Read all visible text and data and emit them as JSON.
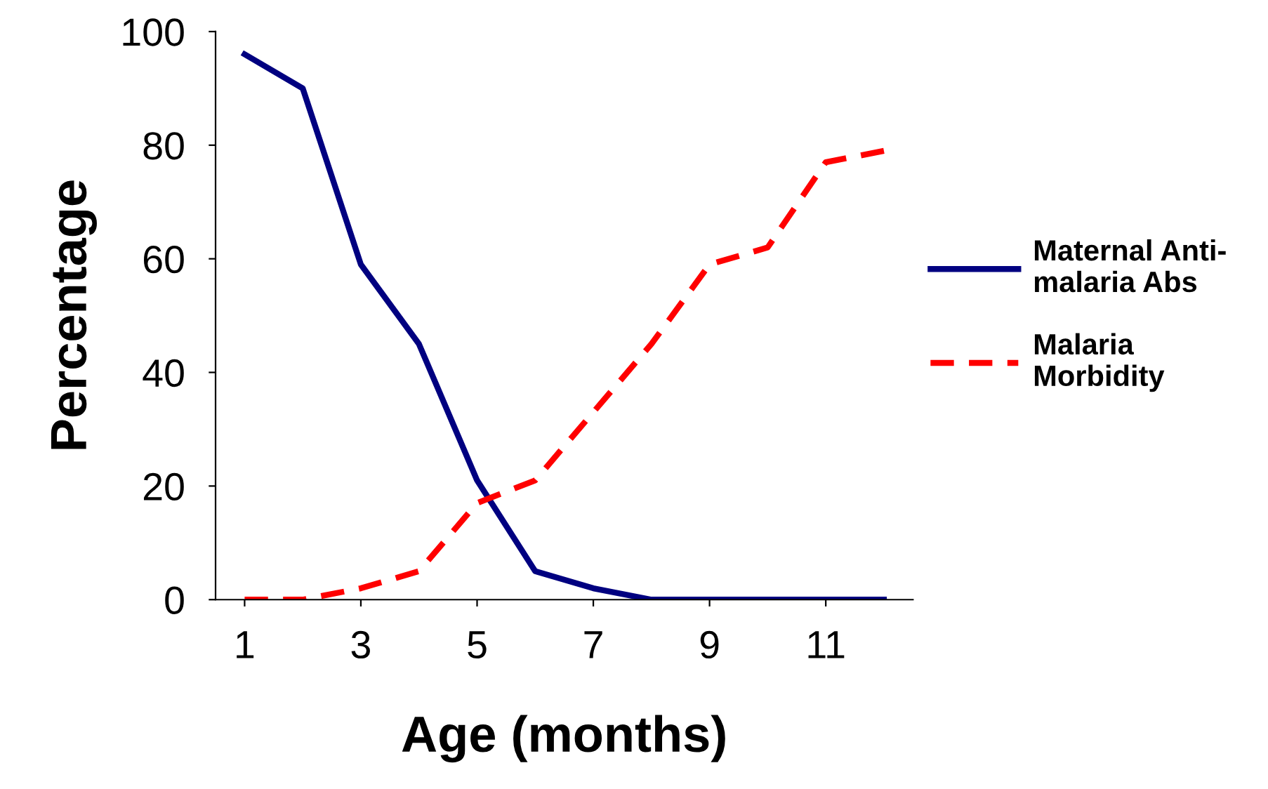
{
  "chart_data": {
    "type": "line",
    "xlabel": "Age (months)",
    "ylabel": "Percentage",
    "x": [
      1,
      2,
      3,
      4,
      5,
      6,
      7,
      8,
      9,
      10,
      11,
      12
    ],
    "series": [
      {
        "name": "Maternal Anti-\nmalaria Abs",
        "color": "#000080",
        "line_style": "solid",
        "values": [
          96,
          90,
          59,
          45,
          21,
          5,
          2,
          0,
          0,
          0,
          0,
          0
        ]
      },
      {
        "name": "Malaria\nMorbidity",
        "color": "#ff0000",
        "line_style": "dashed",
        "values": [
          0,
          0,
          2,
          5,
          17,
          21,
          33,
          45,
          59,
          62,
          77,
          79
        ]
      }
    ],
    "xlim": [
      0.5,
      12.5
    ],
    "xticks": [
      1,
      3,
      5,
      7,
      9,
      11
    ],
    "ylim": [
      0,
      100
    ],
    "yticks": [
      0,
      20,
      40,
      60,
      80,
      100
    ],
    "grid": false,
    "legend": "right",
    "marker": "none"
  }
}
